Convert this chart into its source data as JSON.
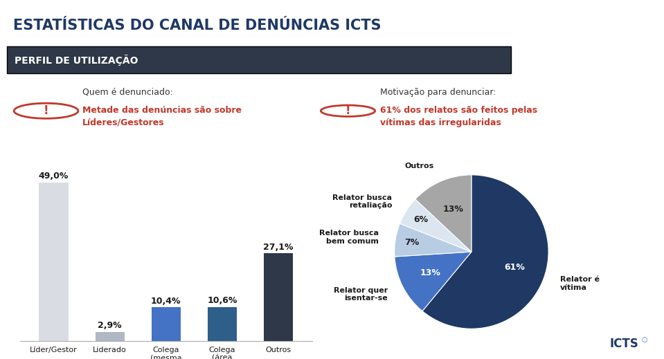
{
  "title": "ESTATÍSTICAS DO CANAL DE DENÚNCIAS ICTS",
  "subtitle_bar": "PERFIL DE UTILIZAÇÃO",
  "header_left_title": "Quem é denunciado:",
  "header_left_text": "Metade das denúncias são sobre\nLíderes/Gestores",
  "header_right_title": "Motivação para denunciar:",
  "header_right_text": "61% dos relatos são feitos pelas\nvítimas das irregularidas",
  "bar_categories": [
    "Líder/Gestor",
    "Liderado",
    "Colega\n(mesma\nárea)",
    "Colega\n(área\ndistinta)",
    "Outros"
  ],
  "bar_values": [
    49.0,
    2.9,
    10.4,
    10.6,
    27.1
  ],
  "bar_colors": [
    "#d9dde3",
    "#b0b8c5",
    "#4472c4",
    "#2e5f8a",
    "#2e3848"
  ],
  "bar_value_labels": [
    "49,0%",
    "2,9%",
    "10,4%",
    "10,6%",
    "27,1%"
  ],
  "pie_labels": [
    "Relator é\nvítima",
    "Relator quer\nisentar-se",
    "Relator busca\nbem comum",
    "Relator busca\nretaliação",
    "Outros"
  ],
  "pie_values": [
    61,
    13,
    7,
    6,
    13
  ],
  "pie_pct_labels": [
    "61%",
    "13%",
    "7%",
    "6%",
    "13%"
  ],
  "pie_colors": [
    "#1f3864",
    "#4472c4",
    "#b8cce4",
    "#dce6f1",
    "#a6a6a6"
  ],
  "background_color": "#ffffff",
  "title_color": "#1f3864",
  "subtitle_bar_color": "#2e3848",
  "subtitle_bar_text_color": "#ffffff",
  "header_title_color": "#333333",
  "header_body_color": "#c0392b",
  "excl_color": "#c0392b",
  "icts_logo_color": "#1f3864",
  "icts_dot_color": "#4472c4",
  "font_size_title": 15,
  "font_size_subtitle_bar": 10,
  "font_size_header_title": 9,
  "font_size_header_body": 9,
  "font_size_bar_label": 9,
  "font_size_tick": 8,
  "font_size_pie_pct": 9,
  "font_size_pie_label": 8,
  "font_size_logo": 12
}
